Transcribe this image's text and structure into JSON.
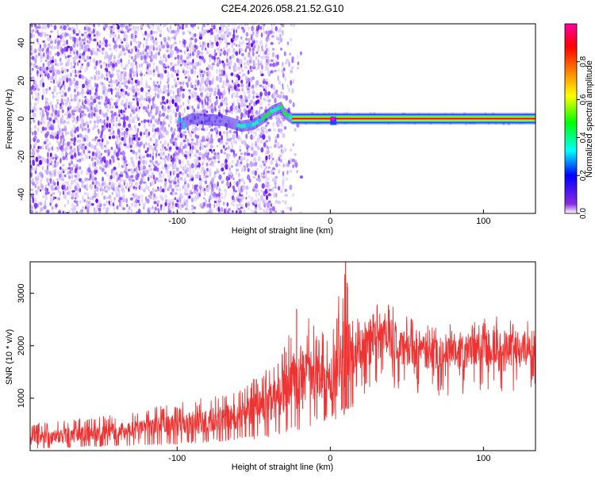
{
  "page_title": "C2E4.2026.058.21.52.G10",
  "chart_data": [
    {
      "type": "heatmap",
      "title": "C2E4.2026.058.21.52.G10",
      "xlabel": "Height of straight line (km)",
      "ylabel": "Frequency (Hz)",
      "xlim": [
        -196,
        134
      ],
      "ylim": [
        -50,
        50
      ],
      "xticks": [
        -100,
        0,
        100
      ],
      "xtick_labels": [
        "-100",
        "0",
        "100"
      ],
      "yticks": [
        -40,
        -20,
        0,
        20,
        40
      ],
      "ytick_labels": [
        "-40",
        "-20",
        "0",
        "20",
        "40"
      ],
      "grid": false,
      "colorbar": {
        "label": "Normalized spectral amplitude",
        "range": [
          0,
          1
        ],
        "ticks": [
          0.0,
          0.2,
          0.4,
          0.6,
          0.8
        ],
        "tick_labels": [
          "0.0",
          "0.2",
          "0.4",
          "0.6",
          "0.8"
        ],
        "colors": [
          "#ffffff",
          "#8a2be2",
          "#0000ff",
          "#00ffff",
          "#00ff00",
          "#ffff00",
          "#ff8000",
          "#ff0000",
          "#ff00a0"
        ]
      },
      "ridge": [
        {
          "x": -100,
          "y": -4
        },
        {
          "x": -90,
          "y": 0
        },
        {
          "x": -70,
          "y": -1
        },
        {
          "x": -58,
          "y": -4
        },
        {
          "x": -50,
          "y": -3
        },
        {
          "x": -44,
          "y": 0
        },
        {
          "x": -38,
          "y": 4
        },
        {
          "x": -32,
          "y": 6
        },
        {
          "x": -30,
          "y": 3
        },
        {
          "x": -25,
          "y": 0
        },
        {
          "x": 0,
          "y": 0
        },
        {
          "x": 134,
          "y": 0
        }
      ]
    },
    {
      "type": "line",
      "xlabel": "Height of straight line (km)",
      "ylabel": "SNR (10 * v/v)",
      "xlim": [
        -196,
        134
      ],
      "ylim": [
        0,
        3600
      ],
      "xticks": [
        -100,
        0,
        100
      ],
      "xtick_labels": [
        "-100",
        "0",
        "100"
      ],
      "yticks": [
        1000,
        2000,
        3000
      ],
      "ytick_labels": [
        "1000",
        "2000",
        "3000"
      ],
      "grid": false,
      "series_color": "#ee3333",
      "envelope": [
        {
          "x": -196,
          "low": 50,
          "mean": 200,
          "high": 520
        },
        {
          "x": -150,
          "low": 100,
          "mean": 300,
          "high": 650
        },
        {
          "x": -100,
          "low": 150,
          "mean": 450,
          "high": 900
        },
        {
          "x": -60,
          "low": 250,
          "mean": 650,
          "high": 1150
        },
        {
          "x": -40,
          "low": 300,
          "mean": 900,
          "high": 1600
        },
        {
          "x": -30,
          "low": 400,
          "mean": 1100,
          "high": 2000
        },
        {
          "x": -20,
          "low": 500,
          "mean": 1300,
          "high": 2700
        },
        {
          "x": -10,
          "low": 600,
          "mean": 1500,
          "high": 2400
        },
        {
          "x": 0,
          "low": 700,
          "mean": 1300,
          "high": 2200
        },
        {
          "x": 10,
          "low": 800,
          "mean": 1600,
          "high": 3600
        },
        {
          "x": 20,
          "low": 1300,
          "mean": 2000,
          "high": 2600
        },
        {
          "x": 35,
          "low": 1500,
          "mean": 2100,
          "high": 2900
        },
        {
          "x": 50,
          "low": 1400,
          "mean": 1950,
          "high": 2600
        },
        {
          "x": 70,
          "low": 1300,
          "mean": 1850,
          "high": 2400
        },
        {
          "x": 90,
          "low": 1350,
          "mean": 1900,
          "high": 2500
        },
        {
          "x": 110,
          "low": 1400,
          "mean": 2000,
          "high": 2600
        },
        {
          "x": 134,
          "low": 1350,
          "mean": 1900,
          "high": 2500
        }
      ]
    }
  ]
}
